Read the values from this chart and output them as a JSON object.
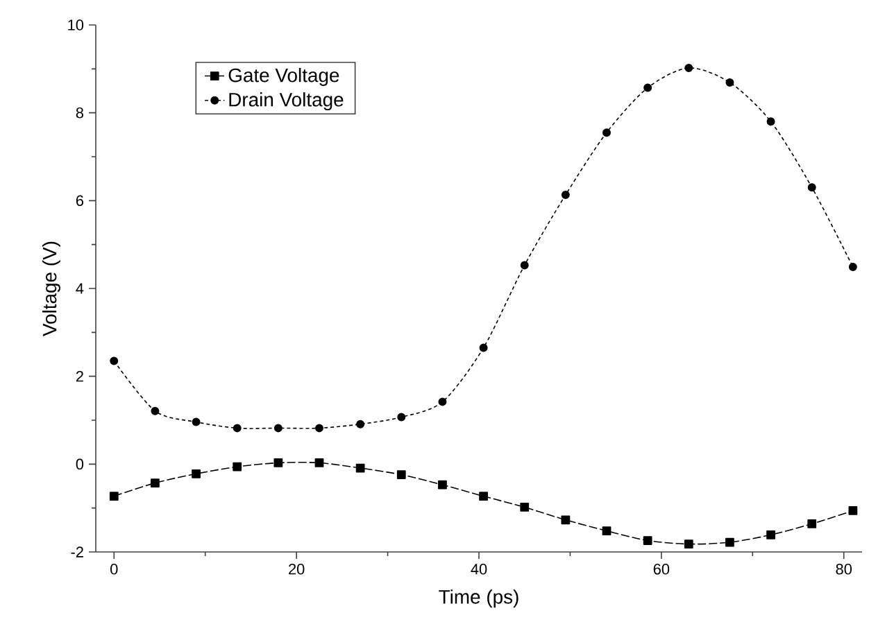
{
  "chart_data": {
    "type": "line",
    "xlabel": "Time (ps)",
    "ylabel": "Voltage (V)",
    "x": [
      0,
      4.5,
      9,
      13.5,
      18,
      22.5,
      27,
      31.5,
      36,
      40.5,
      45,
      49.5,
      54,
      58.5,
      63,
      67.5,
      72,
      76.5,
      81
    ],
    "series": [
      {
        "name": "Gate Voltage",
        "color": "#000000",
        "marker": "square",
        "line_style": "dashed",
        "values": [
          -0.73,
          -0.43,
          -0.22,
          -0.06,
          0.03,
          0.03,
          -0.09,
          -0.24,
          -0.47,
          -0.73,
          -0.98,
          -1.27,
          -1.52,
          -1.74,
          -1.82,
          -1.78,
          -1.61,
          -1.36,
          -1.06
        ]
      },
      {
        "name": "Drain Voltage",
        "color": "#000000",
        "marker": "circle",
        "line_style": "dotted",
        "values": [
          2.35,
          1.21,
          0.96,
          0.82,
          0.82,
          0.82,
          0.91,
          1.07,
          1.42,
          2.65,
          4.53,
          6.13,
          7.55,
          8.57,
          9.02,
          8.69,
          7.8,
          6.3,
          4.49
        ]
      }
    ],
    "xlim": [
      -2,
      82
    ],
    "ylim": [
      -2,
      10
    ],
    "xticks": [
      0,
      20,
      40,
      60,
      80
    ],
    "yticks": [
      -2,
      0,
      2,
      4,
      6,
      8,
      10
    ],
    "grid": false,
    "legend": "top left"
  }
}
